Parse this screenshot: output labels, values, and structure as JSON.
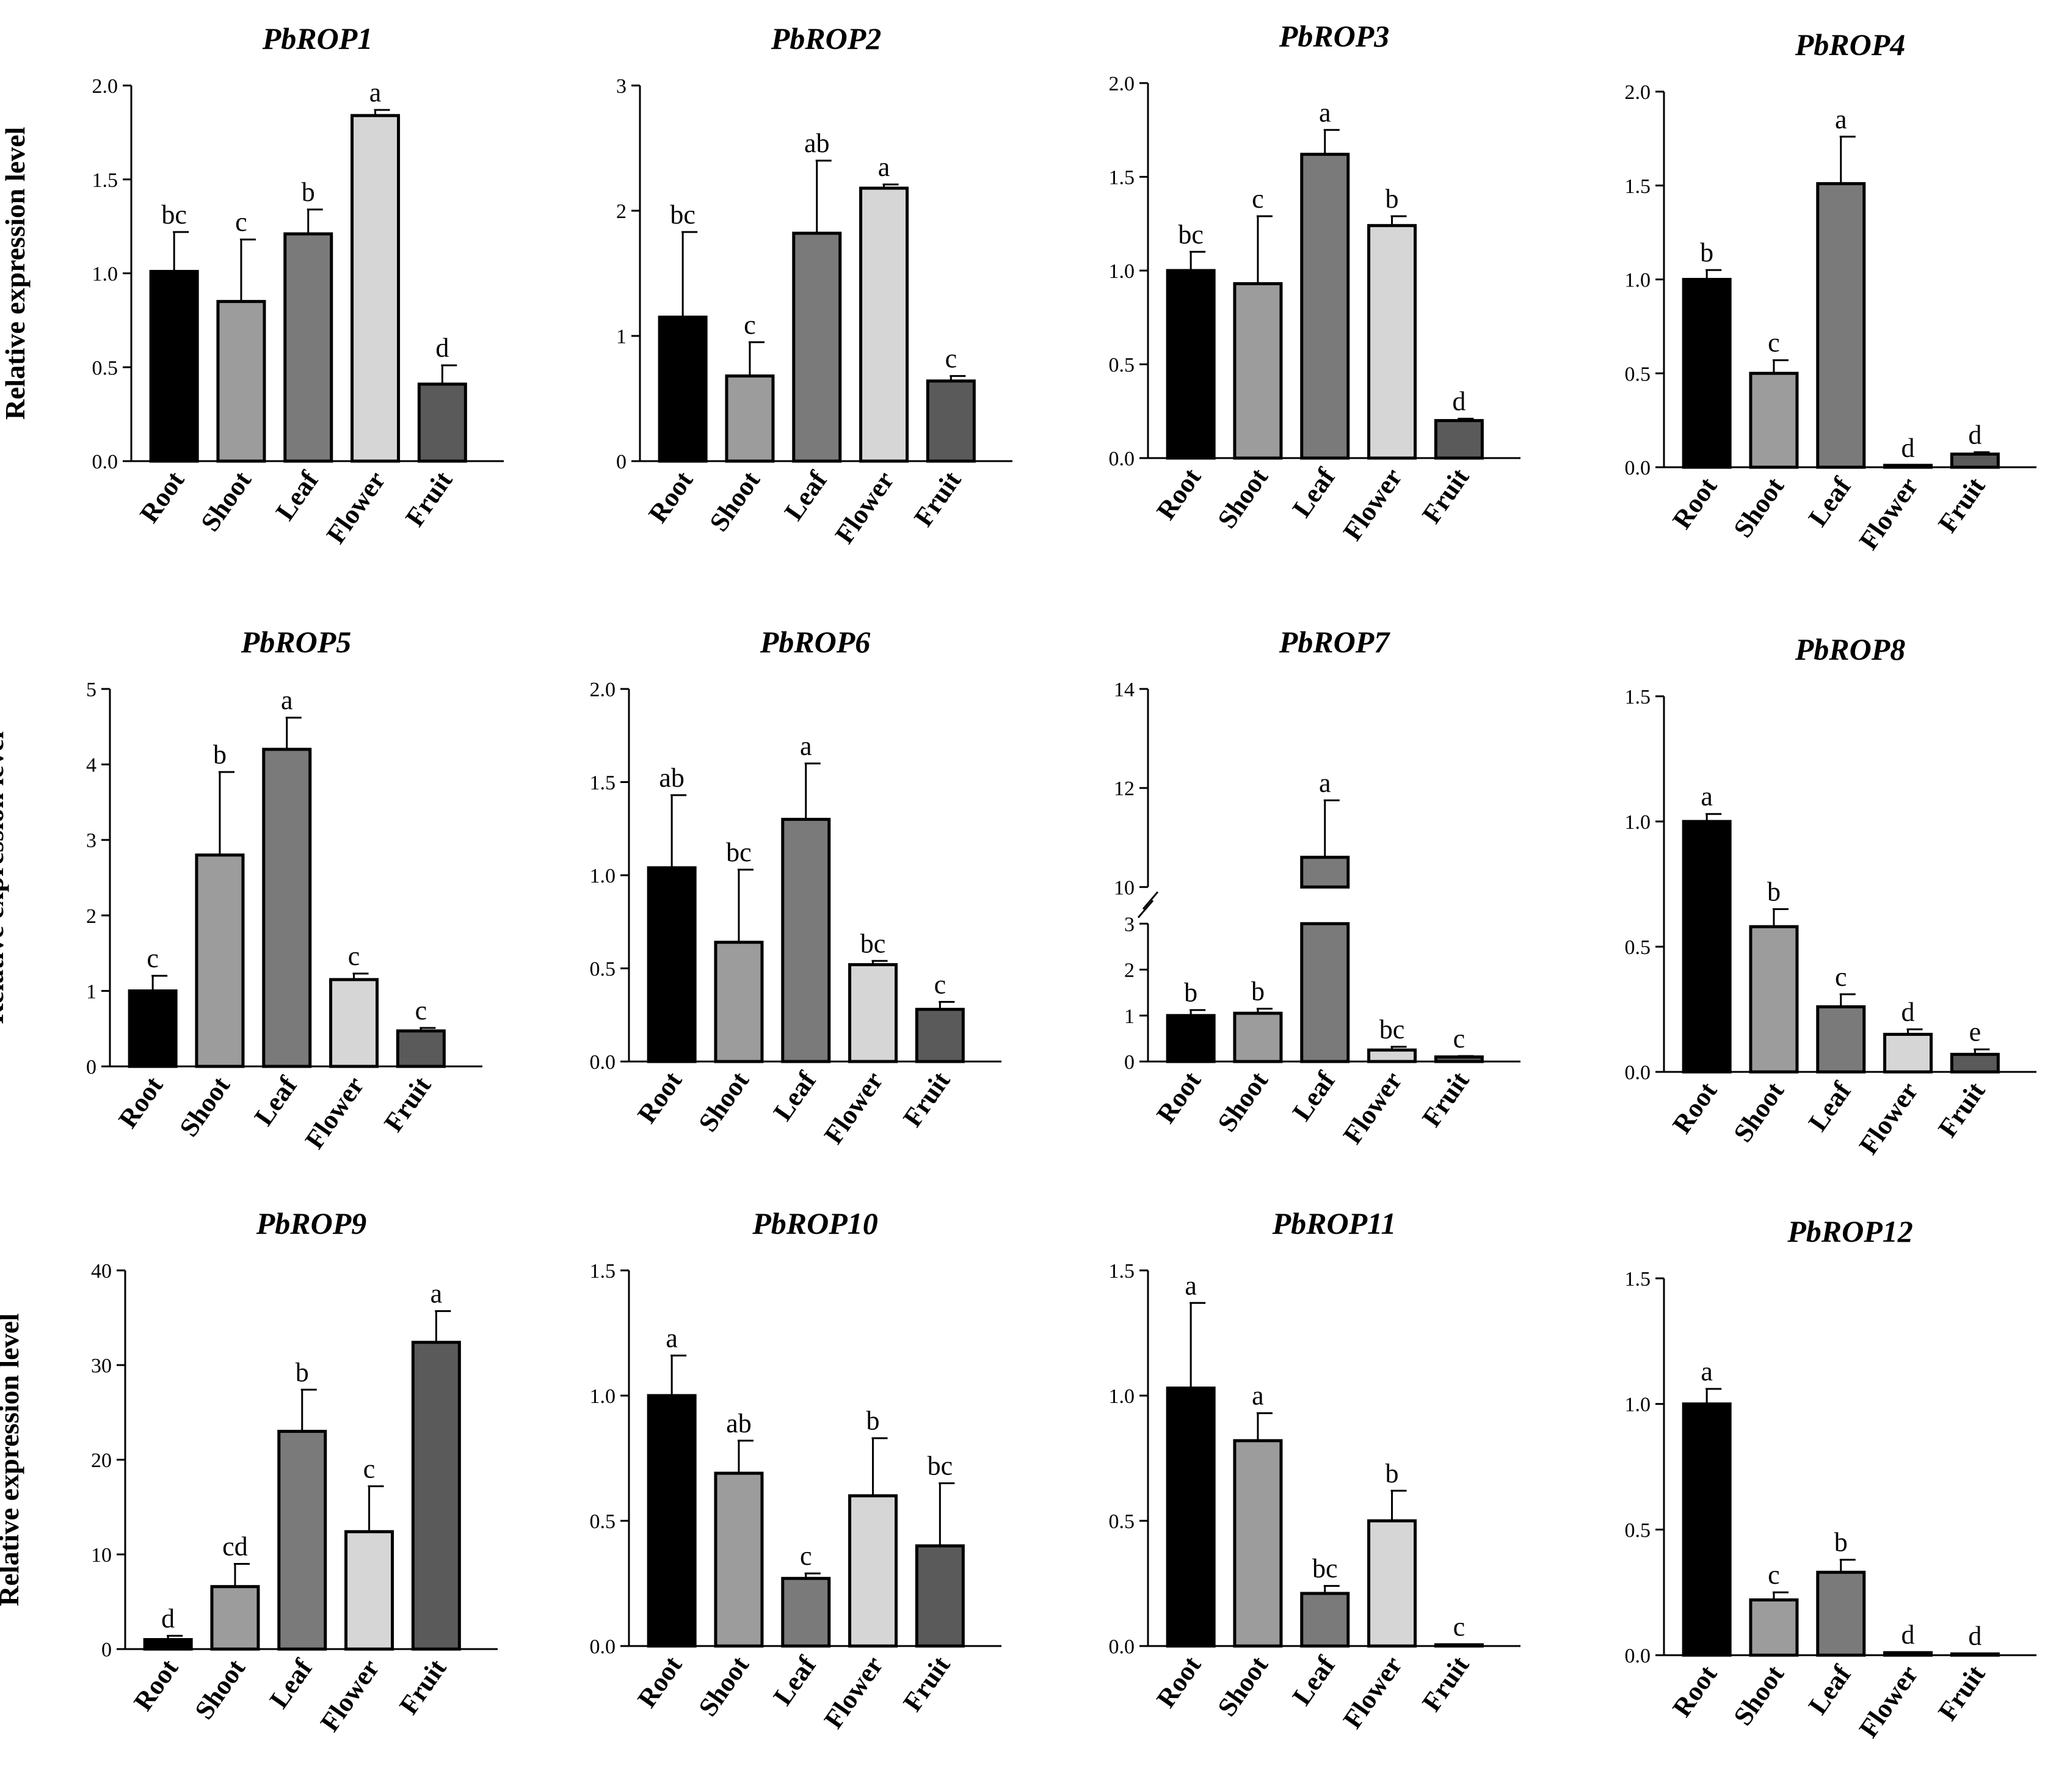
{
  "colors": {
    "Root": "#000000",
    "Shoot": "#9c9c9c",
    "Leaf": "#7a7a7a",
    "Flower": "#d6d6d6",
    "Fruit": "#5a5a5a"
  },
  "chart_data": [
    {
      "type": "bar",
      "title": "PbROP1",
      "ylabel": "Relative expression level",
      "categories": [
        "Root",
        "Shoot",
        "Leaf",
        "Flower",
        "Fruit"
      ],
      "values": [
        1.01,
        0.85,
        1.21,
        1.84,
        0.41
      ],
      "errors": [
        0.21,
        0.33,
        0.13,
        0.03,
        0.1
      ],
      "letters": [
        "bc",
        "c",
        "b",
        "a",
        "d"
      ],
      "ylim": [
        0,
        2.0
      ],
      "yticks": [
        0,
        0.5,
        1.0,
        1.5,
        2.0
      ],
      "ytick_labels": [
        "0.0",
        "0.5",
        "1.0",
        "1.5",
        "2.0"
      ]
    },
    {
      "type": "bar",
      "title": "PbROP2",
      "ylabel": "",
      "categories": [
        "Root",
        "Shoot",
        "Leaf",
        "Flower",
        "Fruit"
      ],
      "values": [
        1.15,
        0.68,
        1.82,
        2.18,
        0.64
      ],
      "errors": [
        0.68,
        0.27,
        0.58,
        0.03,
        0.04
      ],
      "letters": [
        "bc",
        "c",
        "ab",
        "a",
        "c"
      ],
      "ylim": [
        0,
        3
      ],
      "yticks": [
        0,
        1,
        2,
        3
      ],
      "ytick_labels": [
        "0",
        "1",
        "2",
        "3"
      ]
    },
    {
      "type": "bar",
      "title": "PbROP3",
      "ylabel": "",
      "categories": [
        "Root",
        "Shoot",
        "Leaf",
        "Flower",
        "Fruit"
      ],
      "values": [
        1.0,
        0.93,
        1.62,
        1.24,
        0.2
      ],
      "errors": [
        0.1,
        0.36,
        0.13,
        0.05,
        0.01
      ],
      "letters": [
        "bc",
        "c",
        "a",
        "b",
        "d"
      ],
      "ylim": [
        0,
        2.0
      ],
      "yticks": [
        0,
        0.5,
        1.0,
        1.5,
        2.0
      ],
      "ytick_labels": [
        "0.0",
        "0.5",
        "1.0",
        "1.5",
        "2.0"
      ]
    },
    {
      "type": "bar",
      "title": "PbROP4",
      "ylabel": "",
      "categories": [
        "Root",
        "Shoot",
        "Leaf",
        "Flower",
        "Fruit"
      ],
      "values": [
        1.0,
        0.5,
        1.51,
        0.01,
        0.07
      ],
      "errors": [
        0.05,
        0.07,
        0.25,
        0.0,
        0.01
      ],
      "letters": [
        "b",
        "c",
        "a",
        "d",
        "d"
      ],
      "ylim": [
        0,
        2.0
      ],
      "yticks": [
        0,
        0.5,
        1.0,
        1.5,
        2.0
      ],
      "ytick_labels": [
        "0.0",
        "0.5",
        "1.0",
        "1.5",
        "2.0"
      ]
    },
    {
      "type": "bar",
      "title": "PbROP5",
      "ylabel": "Relative expression level",
      "categories": [
        "Root",
        "Shoot",
        "Leaf",
        "Flower",
        "Fruit"
      ],
      "values": [
        1.0,
        2.8,
        4.2,
        1.15,
        0.47
      ],
      "errors": [
        0.2,
        1.1,
        0.42,
        0.08,
        0.04
      ],
      "letters": [
        "c",
        "b",
        "a",
        "c",
        "c"
      ],
      "ylim": [
        0,
        5
      ],
      "yticks": [
        0,
        1,
        2,
        3,
        4,
        5
      ],
      "ytick_labels": [
        "0",
        "1",
        "2",
        "3",
        "4",
        "5"
      ]
    },
    {
      "type": "bar",
      "title": "PbROP6",
      "ylabel": "",
      "categories": [
        "Root",
        "Shoot",
        "Leaf",
        "Flower",
        "Fruit"
      ],
      "values": [
        1.04,
        0.64,
        1.3,
        0.52,
        0.28
      ],
      "errors": [
        0.39,
        0.39,
        0.3,
        0.02,
        0.04
      ],
      "letters": [
        "ab",
        "bc",
        "a",
        "bc",
        "c"
      ],
      "ylim": [
        0,
        2.0
      ],
      "yticks": [
        0,
        0.5,
        1.0,
        1.5,
        2.0
      ],
      "ytick_labels": [
        "0.0",
        "0.5",
        "1.0",
        "1.5",
        "2.0"
      ]
    },
    {
      "type": "bar",
      "title": "PbROP7",
      "ylabel": "",
      "categories": [
        "Root",
        "Shoot",
        "Leaf",
        "Flower",
        "Fruit"
      ],
      "values": [
        1.0,
        1.05,
        10.6,
        0.25,
        0.1
      ],
      "errors": [
        0.12,
        0.1,
        1.15,
        0.07,
        0.02
      ],
      "letters": [
        "b",
        "b",
        "a",
        "bc",
        "c"
      ],
      "ylim": [
        0,
        14
      ],
      "axis_break": [
        3,
        10
      ],
      "yticks": [
        0,
        1,
        2,
        3,
        10,
        12,
        14
      ],
      "ytick_labels": [
        "0",
        "1",
        "2",
        "3",
        "10",
        "12",
        "14"
      ]
    },
    {
      "type": "bar",
      "title": "PbROP8",
      "ylabel": "",
      "categories": [
        "Root",
        "Shoot",
        "Leaf",
        "Flower",
        "Fruit"
      ],
      "values": [
        1.0,
        0.58,
        0.26,
        0.15,
        0.07
      ],
      "errors": [
        0.03,
        0.07,
        0.05,
        0.02,
        0.02
      ],
      "letters": [
        "a",
        "b",
        "c",
        "d",
        "e"
      ],
      "ylim": [
        0,
        1.5
      ],
      "yticks": [
        0,
        0.5,
        1.0,
        1.5
      ],
      "ytick_labels": [
        "0.0",
        "0.5",
        "1.0",
        "1.5"
      ]
    },
    {
      "type": "bar",
      "title": "PbROP9",
      "ylabel": "Relative expression level",
      "categories": [
        "Root",
        "Shoot",
        "Leaf",
        "Flower",
        "Fruit"
      ],
      "values": [
        1.0,
        6.6,
        23.0,
        12.4,
        32.4
      ],
      "errors": [
        0.4,
        2.4,
        4.4,
        4.8,
        3.3
      ],
      "letters": [
        "d",
        "cd",
        "b",
        "c",
        "a"
      ],
      "ylim": [
        0,
        40
      ],
      "yticks": [
        0,
        10,
        20,
        30,
        40
      ],
      "ytick_labels": [
        "0",
        "10",
        "20",
        "30",
        "40"
      ]
    },
    {
      "type": "bar",
      "title": "PbROP10",
      "ylabel": "",
      "categories": [
        "Root",
        "Shoot",
        "Leaf",
        "Flower",
        "Fruit"
      ],
      "values": [
        1.0,
        0.69,
        0.27,
        0.6,
        0.4
      ],
      "errors": [
        0.16,
        0.13,
        0.02,
        0.23,
        0.25
      ],
      "letters": [
        "a",
        "ab",
        "c",
        "b",
        "bc"
      ],
      "ylim": [
        0,
        1.5
      ],
      "yticks": [
        0,
        0.5,
        1.0,
        1.5
      ],
      "ytick_labels": [
        "0.0",
        "0.5",
        "1.0",
        "1.5"
      ]
    },
    {
      "type": "bar",
      "title": "PbROP11",
      "ylabel": "",
      "categories": [
        "Root",
        "Shoot",
        "Leaf",
        "Flower",
        "Fruit"
      ],
      "values": [
        1.03,
        0.82,
        0.21,
        0.5,
        0.005
      ],
      "errors": [
        0.34,
        0.11,
        0.03,
        0.12,
        0.002
      ],
      "letters": [
        "a",
        "a",
        "bc",
        "b",
        "c"
      ],
      "ylim": [
        0,
        1.5
      ],
      "yticks": [
        0,
        0.5,
        1.0,
        1.5
      ],
      "ytick_labels": [
        "0.0",
        "0.5",
        "1.0",
        "1.5"
      ]
    },
    {
      "type": "bar",
      "title": "PbROP12",
      "ylabel": "",
      "categories": [
        "Root",
        "Shoot",
        "Leaf",
        "Flower",
        "Fruit"
      ],
      "values": [
        1.0,
        0.22,
        0.33,
        0.01,
        0.005
      ],
      "errors": [
        0.06,
        0.03,
        0.05,
        0.002,
        0.002
      ],
      "letters": [
        "a",
        "c",
        "b",
        "d",
        "d"
      ],
      "ylim": [
        0,
        1.5
      ],
      "yticks": [
        0,
        0.5,
        1.0,
        1.5
      ],
      "ytick_labels": [
        "0.0",
        "0.5",
        "1.0",
        "1.5"
      ]
    }
  ]
}
